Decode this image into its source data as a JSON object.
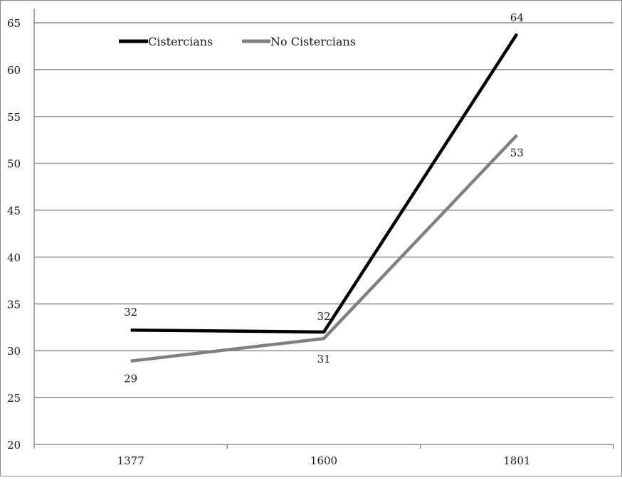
{
  "chart_data": {
    "type": "line",
    "title": "",
    "xlabel": "",
    "ylabel": "",
    "categories": [
      "1377",
      "1600",
      "1801"
    ],
    "ylim": [
      20,
      65
    ],
    "yticks": [
      20,
      25,
      30,
      35,
      40,
      45,
      50,
      55,
      60,
      65
    ],
    "grid": true,
    "legend_position": "top-left",
    "series": [
      {
        "name": "Cistercians",
        "values": [
          32.2,
          32.0,
          63.8
        ],
        "labels": [
          "32",
          "32",
          "64"
        ],
        "color": "#000000"
      },
      {
        "name": "No Cistercians",
        "values": [
          28.9,
          31.3,
          53.0
        ],
        "labels": [
          "29",
          "31",
          "53"
        ],
        "color": "#808080"
      }
    ]
  }
}
